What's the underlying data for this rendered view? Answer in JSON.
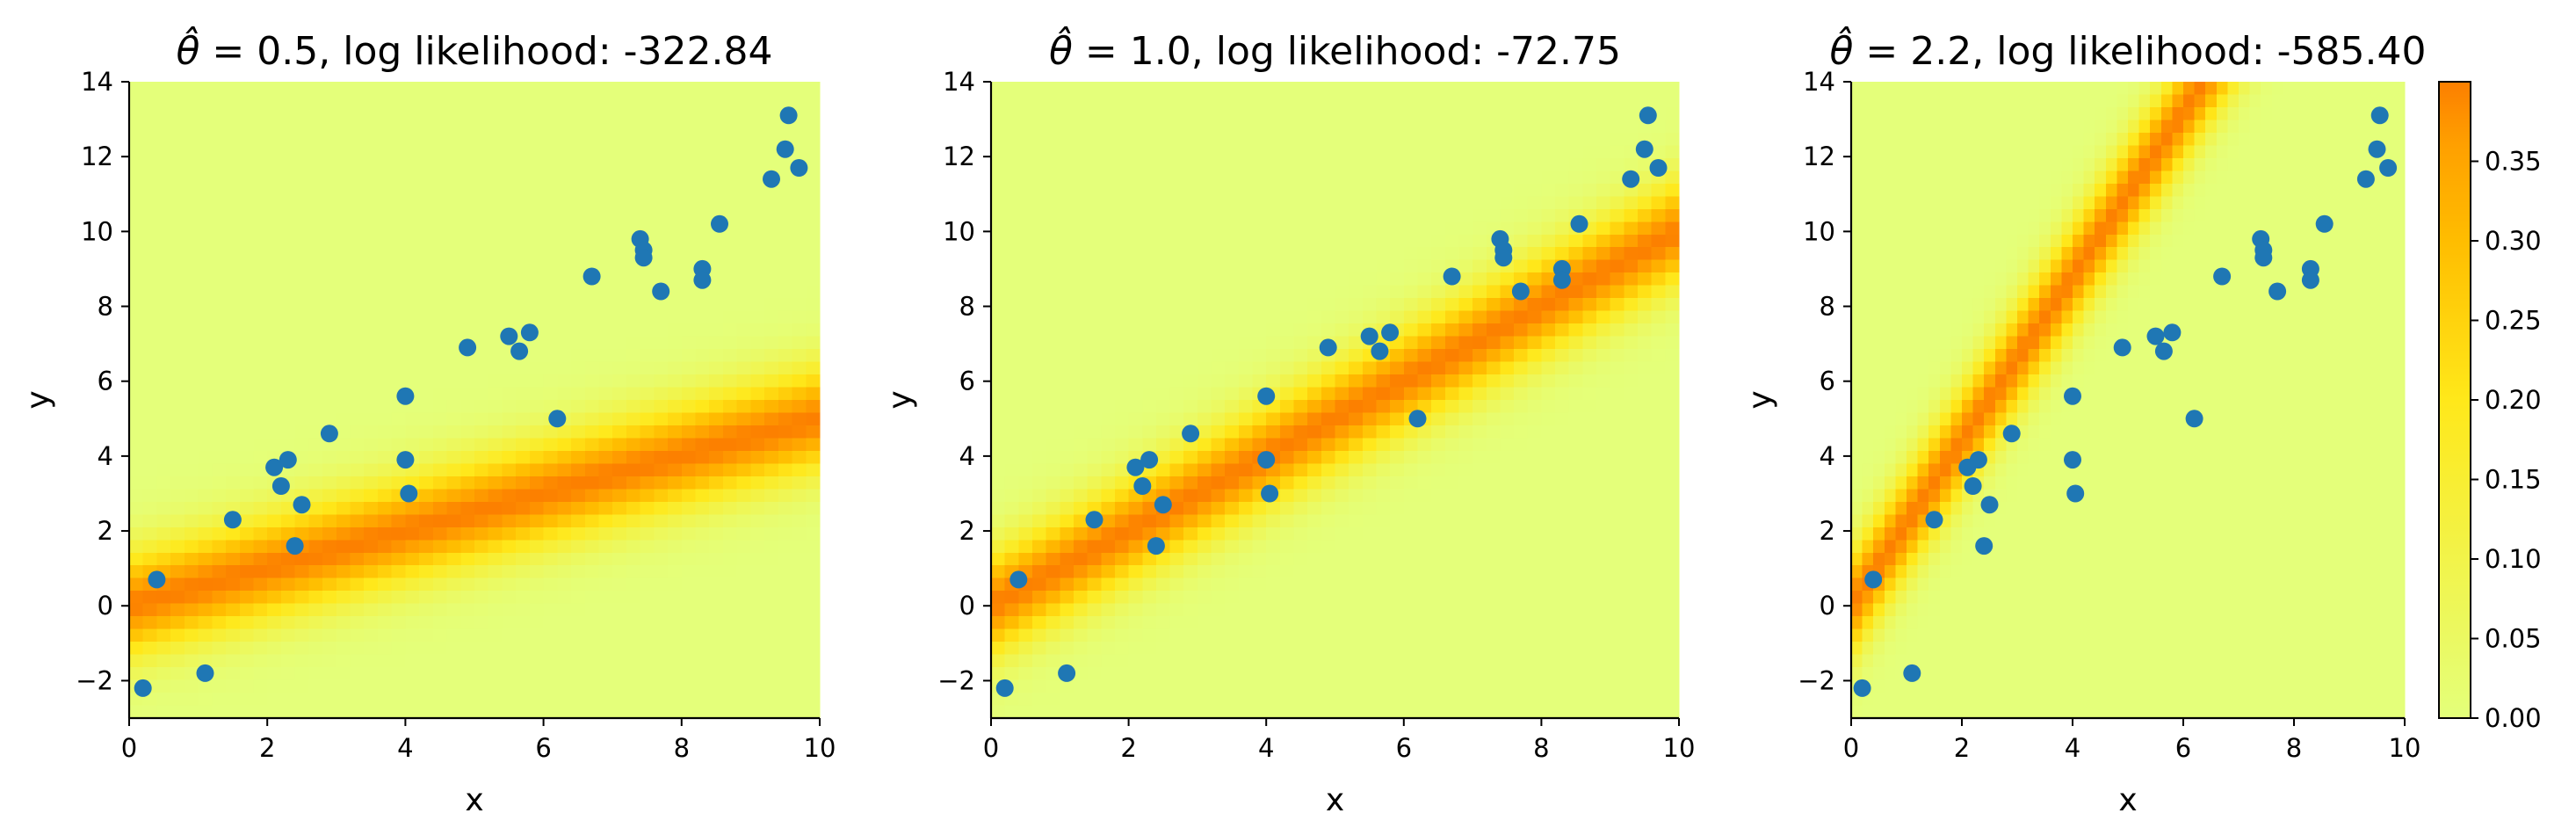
{
  "chart_data": [
    {
      "type": "scatter",
      "title_prefix": "θ̂",
      "title": "= 0.5, log likelihood: -322.84",
      "theta_hat": 0.5,
      "log_likelihood": -322.84,
      "xlabel": "x",
      "ylabel": "y",
      "xlim": [
        0,
        10
      ],
      "ylim": [
        -3,
        14
      ],
      "x_ticks": [
        0,
        2,
        4,
        6,
        8,
        10
      ],
      "y_ticks": [
        -2,
        0,
        2,
        4,
        6,
        8,
        10,
        12,
        14
      ],
      "background": "heatmap of density of y given x, band centred on y = θ̂·x",
      "x": [
        0.2,
        0.4,
        1.1,
        1.5,
        2.1,
        2.2,
        2.3,
        2.4,
        2.5,
        2.9,
        4.0,
        4.0,
        4.05,
        4.9,
        5.5,
        5.65,
        5.8,
        6.2,
        6.7,
        7.4,
        7.45,
        7.45,
        7.7,
        8.3,
        8.3,
        8.55,
        9.3,
        9.5,
        9.55,
        9.7
      ],
      "y": [
        -2.2,
        0.7,
        -1.8,
        2.3,
        3.7,
        3.2,
        3.9,
        1.6,
        2.7,
        4.6,
        5.6,
        3.9,
        3.0,
        6.9,
        7.2,
        6.8,
        7.3,
        5.0,
        8.8,
        9.8,
        9.5,
        9.3,
        8.4,
        9.0,
        8.7,
        10.2,
        11.4,
        12.2,
        13.1,
        11.7
      ]
    },
    {
      "type": "scatter",
      "title_prefix": "θ̂",
      "title": "= 1.0, log likelihood: -72.75",
      "theta_hat": 1.0,
      "log_likelihood": -72.75,
      "xlabel": "x",
      "ylabel": "y",
      "xlim": [
        0,
        10
      ],
      "ylim": [
        -3,
        14
      ],
      "x_ticks": [
        0,
        2,
        4,
        6,
        8,
        10
      ],
      "y_ticks": [
        -2,
        0,
        2,
        4,
        6,
        8,
        10,
        12,
        14
      ],
      "background": "heatmap of density of y given x, band centred on y = θ̂·x",
      "x": [
        0.2,
        0.4,
        1.1,
        1.5,
        2.1,
        2.2,
        2.3,
        2.4,
        2.5,
        2.9,
        4.0,
        4.0,
        4.05,
        4.9,
        5.5,
        5.65,
        5.8,
        6.2,
        6.7,
        7.4,
        7.45,
        7.45,
        7.7,
        8.3,
        8.3,
        8.55,
        9.3,
        9.5,
        9.55,
        9.7
      ],
      "y": [
        -2.2,
        0.7,
        -1.8,
        2.3,
        3.7,
        3.2,
        3.9,
        1.6,
        2.7,
        4.6,
        5.6,
        3.9,
        3.0,
        6.9,
        7.2,
        6.8,
        7.3,
        5.0,
        8.8,
        9.8,
        9.5,
        9.3,
        8.4,
        9.0,
        8.7,
        10.2,
        11.4,
        12.2,
        13.1,
        11.7
      ]
    },
    {
      "type": "scatter",
      "title_prefix": "θ̂",
      "title": "= 2.2, log likelihood: -585.40",
      "theta_hat": 2.2,
      "log_likelihood": -585.4,
      "xlabel": "x",
      "ylabel": "y",
      "xlim": [
        0,
        10
      ],
      "ylim": [
        -3,
        14
      ],
      "x_ticks": [
        0,
        2,
        4,
        6,
        8,
        10
      ],
      "y_ticks": [
        -2,
        0,
        2,
        4,
        6,
        8,
        10,
        12,
        14
      ],
      "background": "heatmap of density of y given x, band centred on y = θ̂·x",
      "x": [
        0.2,
        0.4,
        1.1,
        1.5,
        2.1,
        2.2,
        2.3,
        2.4,
        2.5,
        2.9,
        4.0,
        4.0,
        4.05,
        4.9,
        5.5,
        5.65,
        5.8,
        6.2,
        6.7,
        7.4,
        7.45,
        7.45,
        7.7,
        8.3,
        8.3,
        8.55,
        9.3,
        9.5,
        9.55,
        9.7
      ],
      "y": [
        -2.2,
        0.7,
        -1.8,
        2.3,
        3.7,
        3.2,
        3.9,
        1.6,
        2.7,
        4.6,
        5.6,
        3.9,
        3.0,
        6.9,
        7.2,
        6.8,
        7.3,
        5.0,
        8.8,
        9.8,
        9.5,
        9.3,
        8.4,
        9.0,
        8.7,
        10.2,
        11.4,
        12.2,
        13.1,
        11.7
      ]
    }
  ],
  "colorbar": {
    "min": 0.0,
    "max": 0.4,
    "ticks": [
      "0.00",
      "0.05",
      "0.10",
      "0.15",
      "0.20",
      "0.25",
      "0.30",
      "0.35"
    ],
    "colormap": "Wistia"
  },
  "colors": {
    "points": "#1f77b4",
    "cmap_low": "#e4ff7a",
    "cmap_mid": "#ffe81a",
    "cmap_high1": "#ffbd00",
    "cmap_high2": "#ffa000",
    "cmap_top": "#fc7f00"
  }
}
